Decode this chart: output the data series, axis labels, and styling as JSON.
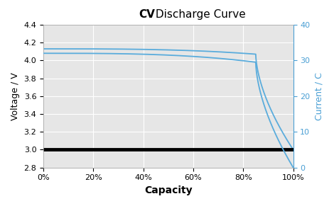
{
  "title_bold": "CV",
  "title_rest": " Discharge Curve",
  "xlabel": "Capacity",
  "ylabel_left": "Voltage / V",
  "ylabel_right": "Current / C",
  "bg_color": "#e6e6e6",
  "fig_bg": "#ffffff",
  "line_color": "#5aacdc",
  "hline_color": "#000000",
  "hline_y": 3.0,
  "hline_lw": 3.5,
  "ylim_left": [
    2.8,
    4.4
  ],
  "ylim_right": [
    0,
    40
  ],
  "xlim": [
    0,
    1.0
  ],
  "xticks": [
    0,
    0.2,
    0.4,
    0.6,
    0.8,
    1.0
  ],
  "yticks_left": [
    2.8,
    3.0,
    3.2,
    3.4,
    3.6,
    3.8,
    4.0,
    4.2,
    4.4
  ],
  "yticks_right": [
    0,
    10,
    20,
    30,
    40
  ],
  "grid_color": "#ffffff",
  "line_width": 1.3,
  "right_axis_color": "#4a9fd4",
  "title_fontsize": 11,
  "label_fontsize": 9,
  "xlabel_fontsize": 10,
  "tick_labelsize": 8
}
